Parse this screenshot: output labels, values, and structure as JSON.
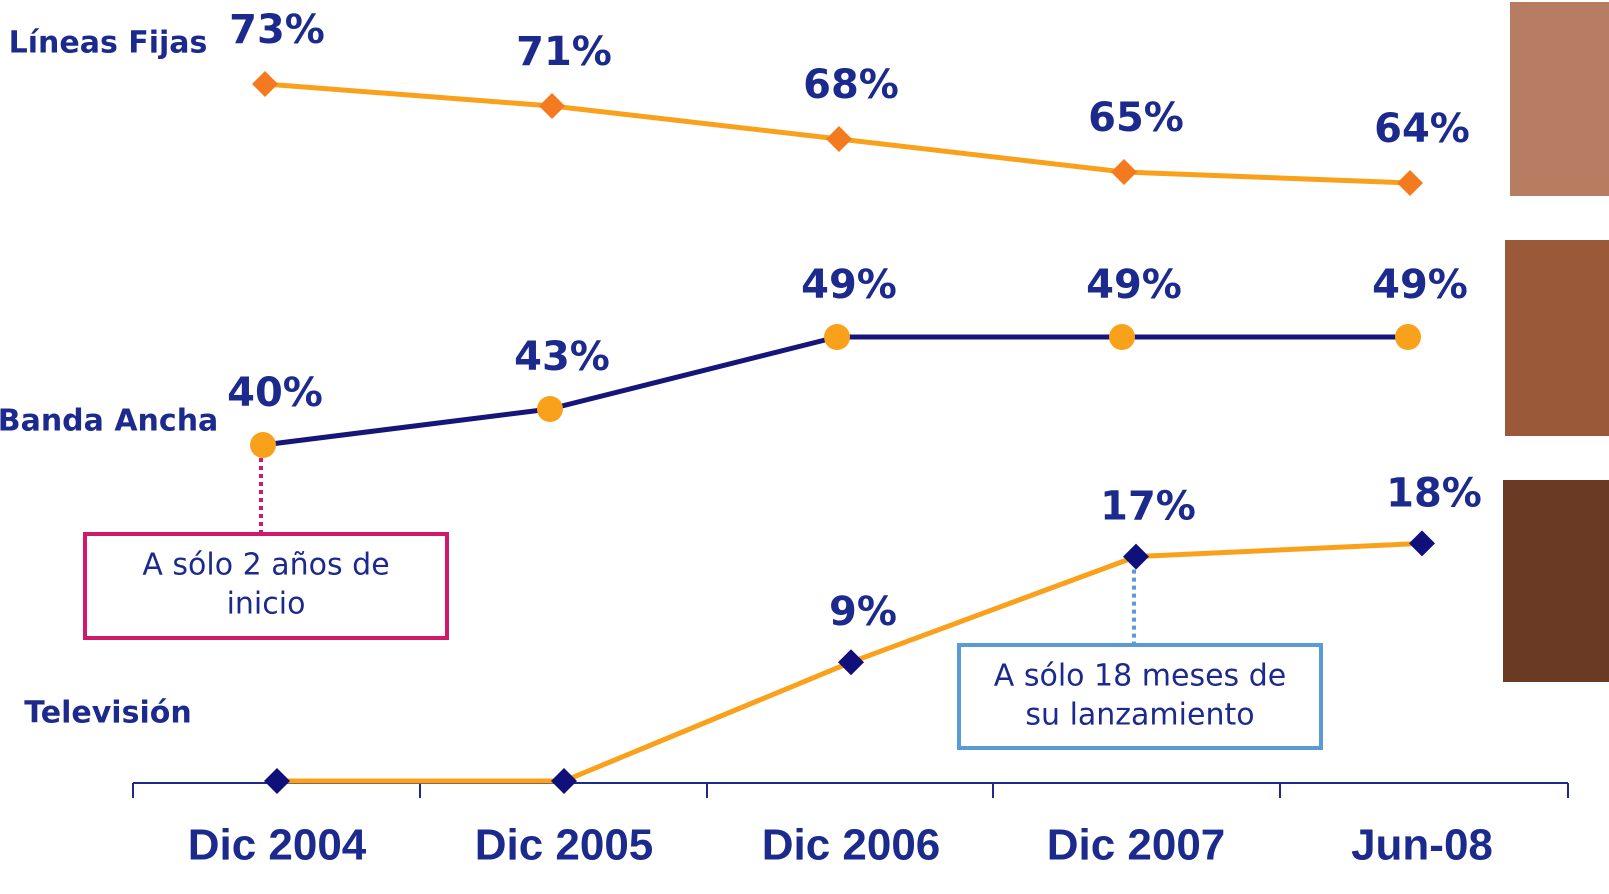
{
  "chart_data": {
    "type": "line",
    "categories": [
      "Dic 2004",
      "Dic 2005",
      "Dic 2006",
      "Dic 2007",
      "Jun-08"
    ],
    "series": [
      {
        "name": "Líneas Fijas",
        "color": "#f9a11b",
        "marker_color": "#f47a1f",
        "marker": "diamond",
        "values": [
          73,
          71,
          68,
          65,
          64
        ],
        "value_labels": [
          "73%",
          "71%",
          "68%",
          "65%",
          "64%"
        ]
      },
      {
        "name": "Banda Ancha",
        "color": "#15157a",
        "marker_color": "#f9a11b",
        "marker": "circle",
        "values": [
          40,
          43,
          49,
          49,
          49
        ],
        "value_labels": [
          "40%",
          "43%",
          "49%",
          "49%",
          "49%"
        ]
      },
      {
        "name": "Televisión",
        "color": "#f9a11b",
        "marker_color": "#10107a",
        "marker": "diamond",
        "values": [
          0,
          0,
          9,
          17,
          18
        ],
        "value_labels": [
          null,
          null,
          "9%",
          "17%",
          "18%"
        ]
      }
    ],
    "annotations": [
      {
        "series": 1,
        "point": 0,
        "color": "#d1196b",
        "text": [
          "A sólo 2 años de",
          "inicio"
        ]
      },
      {
        "series": 2,
        "point": 3,
        "color": "#5b9bd5",
        "text": [
          "A sólo 18 meses de",
          "su lanzamiento"
        ]
      }
    ]
  }
}
